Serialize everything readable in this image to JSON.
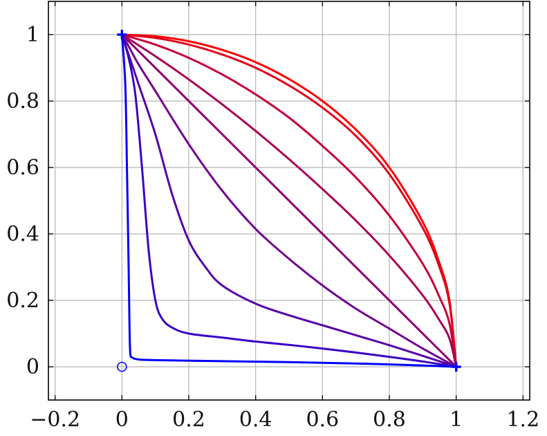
{
  "chart_data": {
    "type": "line",
    "title": "",
    "xlabel": "",
    "ylabel": "",
    "xlim": [
      -0.22,
      1.22
    ],
    "ylim": [
      -0.1,
      1.1
    ],
    "grid": true,
    "x_ticks": [
      {
        "value": -0.2,
        "label": "−0.2"
      },
      {
        "value": 0,
        "label": "0"
      },
      {
        "value": 0.2,
        "label": "0.2"
      },
      {
        "value": 0.4,
        "label": "0.4"
      },
      {
        "value": 0.6,
        "label": "0.6"
      },
      {
        "value": 0.8,
        "label": "0.8"
      },
      {
        "value": 1,
        "label": "1"
      },
      {
        "value": 1.2,
        "label": "1.2"
      }
    ],
    "y_ticks": [
      {
        "value": 0,
        "label": "0"
      },
      {
        "value": 0.2,
        "label": "0.2"
      },
      {
        "value": 0.4,
        "label": "0.4"
      },
      {
        "value": 0.6,
        "label": "0.6"
      },
      {
        "value": 0.8,
        "label": "0.8"
      },
      {
        "value": 1,
        "label": "1"
      }
    ],
    "series": [
      {
        "color": "#ff0000",
        "points": [
          [
            0,
            1
          ],
          [
            0.1,
            0.995
          ],
          [
            0.2,
            0.98
          ],
          [
            0.3,
            0.954
          ],
          [
            0.4,
            0.917
          ],
          [
            0.5,
            0.866
          ],
          [
            0.6,
            0.8
          ],
          [
            0.7,
            0.714
          ],
          [
            0.8,
            0.6
          ],
          [
            0.9,
            0.436
          ],
          [
            0.95,
            0.312
          ],
          [
            0.98,
            0.199
          ],
          [
            1,
            0
          ]
        ]
      },
      {
        "color": "#e3001c",
        "points": [
          [
            0,
            1
          ],
          [
            0.1,
            0.99
          ],
          [
            0.2,
            0.97
          ],
          [
            0.3,
            0.94
          ],
          [
            0.4,
            0.9
          ],
          [
            0.5,
            0.847
          ],
          [
            0.6,
            0.78
          ],
          [
            0.7,
            0.695
          ],
          [
            0.8,
            0.58
          ],
          [
            0.9,
            0.418
          ],
          [
            0.95,
            0.3
          ],
          [
            0.98,
            0.19
          ],
          [
            1,
            0
          ]
        ]
      },
      {
        "color": "#c60039",
        "points": [
          [
            0,
            1
          ],
          [
            0.1,
            0.97
          ],
          [
            0.2,
            0.93
          ],
          [
            0.3,
            0.88
          ],
          [
            0.4,
            0.82
          ],
          [
            0.5,
            0.75
          ],
          [
            0.6,
            0.665
          ],
          [
            0.7,
            0.57
          ],
          [
            0.8,
            0.455
          ],
          [
            0.9,
            0.31
          ],
          [
            0.95,
            0.21
          ],
          [
            0.98,
            0.13
          ],
          [
            1,
            0
          ]
        ]
      },
      {
        "color": "#aa0055",
        "points": [
          [
            0,
            1
          ],
          [
            0.1,
            0.935
          ],
          [
            0.2,
            0.865
          ],
          [
            0.3,
            0.79
          ],
          [
            0.4,
            0.71
          ],
          [
            0.5,
            0.625
          ],
          [
            0.6,
            0.535
          ],
          [
            0.7,
            0.44
          ],
          [
            0.8,
            0.335
          ],
          [
            0.9,
            0.215
          ],
          [
            0.95,
            0.14
          ],
          [
            0.98,
            0.085
          ],
          [
            1,
            0
          ]
        ]
      },
      {
        "color": "#8e0071",
        "points": [
          [
            0,
            1
          ],
          [
            0.1,
            0.9
          ],
          [
            0.2,
            0.8
          ],
          [
            0.3,
            0.7
          ],
          [
            0.4,
            0.6
          ],
          [
            0.5,
            0.5
          ],
          [
            0.6,
            0.4
          ],
          [
            0.7,
            0.3
          ],
          [
            0.8,
            0.2
          ],
          [
            0.9,
            0.1
          ],
          [
            1,
            0
          ]
        ]
      },
      {
        "color": "#71008e",
        "points": [
          [
            0,
            1
          ],
          [
            0.02,
            0.965
          ],
          [
            0.05,
            0.91
          ],
          [
            0.1,
            0.83
          ],
          [
            0.2,
            0.67
          ],
          [
            0.3,
            0.53
          ],
          [
            0.4,
            0.415
          ],
          [
            0.5,
            0.325
          ],
          [
            0.6,
            0.245
          ],
          [
            0.7,
            0.175
          ],
          [
            0.8,
            0.115
          ],
          [
            0.9,
            0.055
          ],
          [
            1,
            0
          ]
        ]
      },
      {
        "color": "#5500aa",
        "points": [
          [
            0,
            1
          ],
          [
            0.02,
            0.94
          ],
          [
            0.05,
            0.85
          ],
          [
            0.1,
            0.7
          ],
          [
            0.15,
            0.52
          ],
          [
            0.2,
            0.38
          ],
          [
            0.25,
            0.3
          ],
          [
            0.3,
            0.245
          ],
          [
            0.4,
            0.19
          ],
          [
            0.5,
            0.155
          ],
          [
            0.6,
            0.125
          ],
          [
            0.7,
            0.095
          ],
          [
            0.8,
            0.065
          ],
          [
            0.9,
            0.033
          ],
          [
            1,
            0
          ]
        ]
      },
      {
        "color": "#3900c6",
        "points": [
          [
            0,
            1
          ],
          [
            0.02,
            0.93
          ],
          [
            0.04,
            0.82
          ],
          [
            0.06,
            0.6
          ],
          [
            0.08,
            0.35
          ],
          [
            0.1,
            0.2
          ],
          [
            0.12,
            0.145
          ],
          [
            0.15,
            0.118
          ],
          [
            0.2,
            0.1
          ],
          [
            0.3,
            0.088
          ],
          [
            0.4,
            0.076
          ],
          [
            0.5,
            0.066
          ],
          [
            0.6,
            0.055
          ],
          [
            0.7,
            0.043
          ],
          [
            0.8,
            0.03
          ],
          [
            0.9,
            0.016
          ],
          [
            1,
            0
          ]
        ]
      },
      {
        "color": "#0000ff",
        "points": [
          [
            0,
            1
          ],
          [
            0.01,
            0.85
          ],
          [
            0.015,
            0.6
          ],
          [
            0.02,
            0.3
          ],
          [
            0.023,
            0.1
          ],
          [
            0.025,
            0.04
          ],
          [
            0.03,
            0.028
          ],
          [
            0.05,
            0.022
          ],
          [
            0.1,
            0.02
          ],
          [
            0.3,
            0.017
          ],
          [
            0.5,
            0.014
          ],
          [
            0.7,
            0.01
          ],
          [
            0.9,
            0.004
          ],
          [
            1,
            0
          ]
        ]
      }
    ],
    "markers": [
      {
        "type": "plus",
        "color": "#0000ff",
        "x": 0,
        "y": 1
      },
      {
        "type": "plus",
        "color": "#0000ff",
        "x": 1,
        "y": 0
      },
      {
        "type": "circle",
        "color": "#0000ff",
        "x": 0,
        "y": 0
      }
    ]
  }
}
